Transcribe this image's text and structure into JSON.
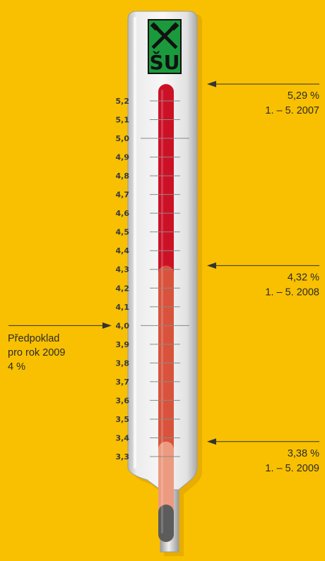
{
  "chart_data": {
    "type": "thermometer",
    "ylim": [
      3.3,
      5.2
    ],
    "tick_labels": [
      "5,2",
      "5,1",
      "5,0",
      "4,9",
      "4,8",
      "4,7",
      "4,6",
      "4,5",
      "4,4",
      "4,3",
      "4,2",
      "4,1",
      "4,0",
      "3,9",
      "3,8",
      "3,7",
      "3,6",
      "3,5",
      "3,4",
      "3,3"
    ],
    "series": [
      {
        "value": 5.29,
        "value_label": "5,29 %",
        "period": "1. – 5. 2007",
        "color": "#cc1126"
      },
      {
        "value": 4.32,
        "value_label": "4,32 %",
        "period": "1. – 5. 2008",
        "color": "#d9533c"
      },
      {
        "value": 3.38,
        "value_label": "3,38 %",
        "period": "1. – 5. 2009",
        "color": "#ec9a80"
      }
    ],
    "forecast": {
      "value": 4.0,
      "lines": [
        "Předpoklad",
        "pro rok 2009",
        "4 %"
      ]
    }
  },
  "logo": {
    "text": "ŠU",
    "bg": "#1a9a3c"
  },
  "colors": {
    "background": "#f8c000",
    "tube": "#e6e6e6",
    "mercury_dark": "#5c5c5c"
  }
}
